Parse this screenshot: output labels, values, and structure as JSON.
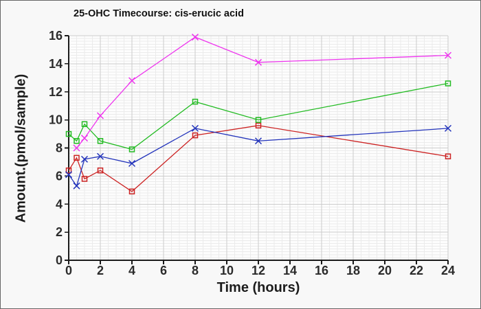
{
  "window": {
    "background": "#f8f8f8",
    "border_color": "#666666"
  },
  "chart_data": {
    "type": "line",
    "title": "25-OHC Timecourse: cis-erucic acid",
    "xlabel": "Time (hours)",
    "ylabel": "Amount.(pmol/sample)",
    "xlim": [
      0,
      24
    ],
    "ylim": [
      0,
      16
    ],
    "x_ticks": [
      0,
      2,
      4,
      6,
      8,
      10,
      12,
      14,
      16,
      18,
      20,
      22,
      24
    ],
    "y_ticks": [
      0,
      2,
      4,
      6,
      8,
      10,
      12,
      14,
      16
    ],
    "x_minor_step": 0.5,
    "y_minor_step": 0.2,
    "grid": {
      "major": true,
      "minor": true
    },
    "legend": "none",
    "timepoints_hours": [
      0,
      0.5,
      1,
      2,
      4,
      8,
      12,
      24
    ],
    "series": [
      {
        "name": "red",
        "color": "#cc2222",
        "marker": "square",
        "x": [
          0,
          0.5,
          1,
          2,
          4,
          8,
          12,
          24
        ],
        "y": [
          6.4,
          7.3,
          5.8,
          6.4,
          4.9,
          8.9,
          9.6,
          7.4
        ]
      },
      {
        "name": "blue",
        "color": "#2233bb",
        "marker": "x",
        "x": [
          0,
          0.5,
          1,
          2,
          4,
          8,
          12,
          24
        ],
        "y": [
          6.1,
          5.3,
          7.2,
          7.4,
          6.9,
          9.4,
          8.5,
          9.4
        ]
      },
      {
        "name": "green",
        "color": "#22bb22",
        "marker": "square",
        "x": [
          0,
          0.5,
          1,
          2,
          4,
          8,
          12,
          24
        ],
        "y": [
          9.0,
          8.5,
          9.7,
          8.5,
          7.9,
          11.3,
          10.0,
          12.6
        ]
      },
      {
        "name": "magenta",
        "color": "#ee33ee",
        "marker": "x",
        "x": [
          0.5,
          1,
          2,
          4,
          8,
          12,
          24
        ],
        "y": [
          8.0,
          8.7,
          10.3,
          12.8,
          15.9,
          14.1,
          14.6
        ]
      }
    ],
    "style": {
      "plot_bg": "#fdfdfd",
      "grid_major": "#cccccc",
      "grid_minor": "#ebebeb",
      "axis": "#1a1a1a",
      "tick_label": "#2b2b2b",
      "title_color": "#111111"
    }
  }
}
